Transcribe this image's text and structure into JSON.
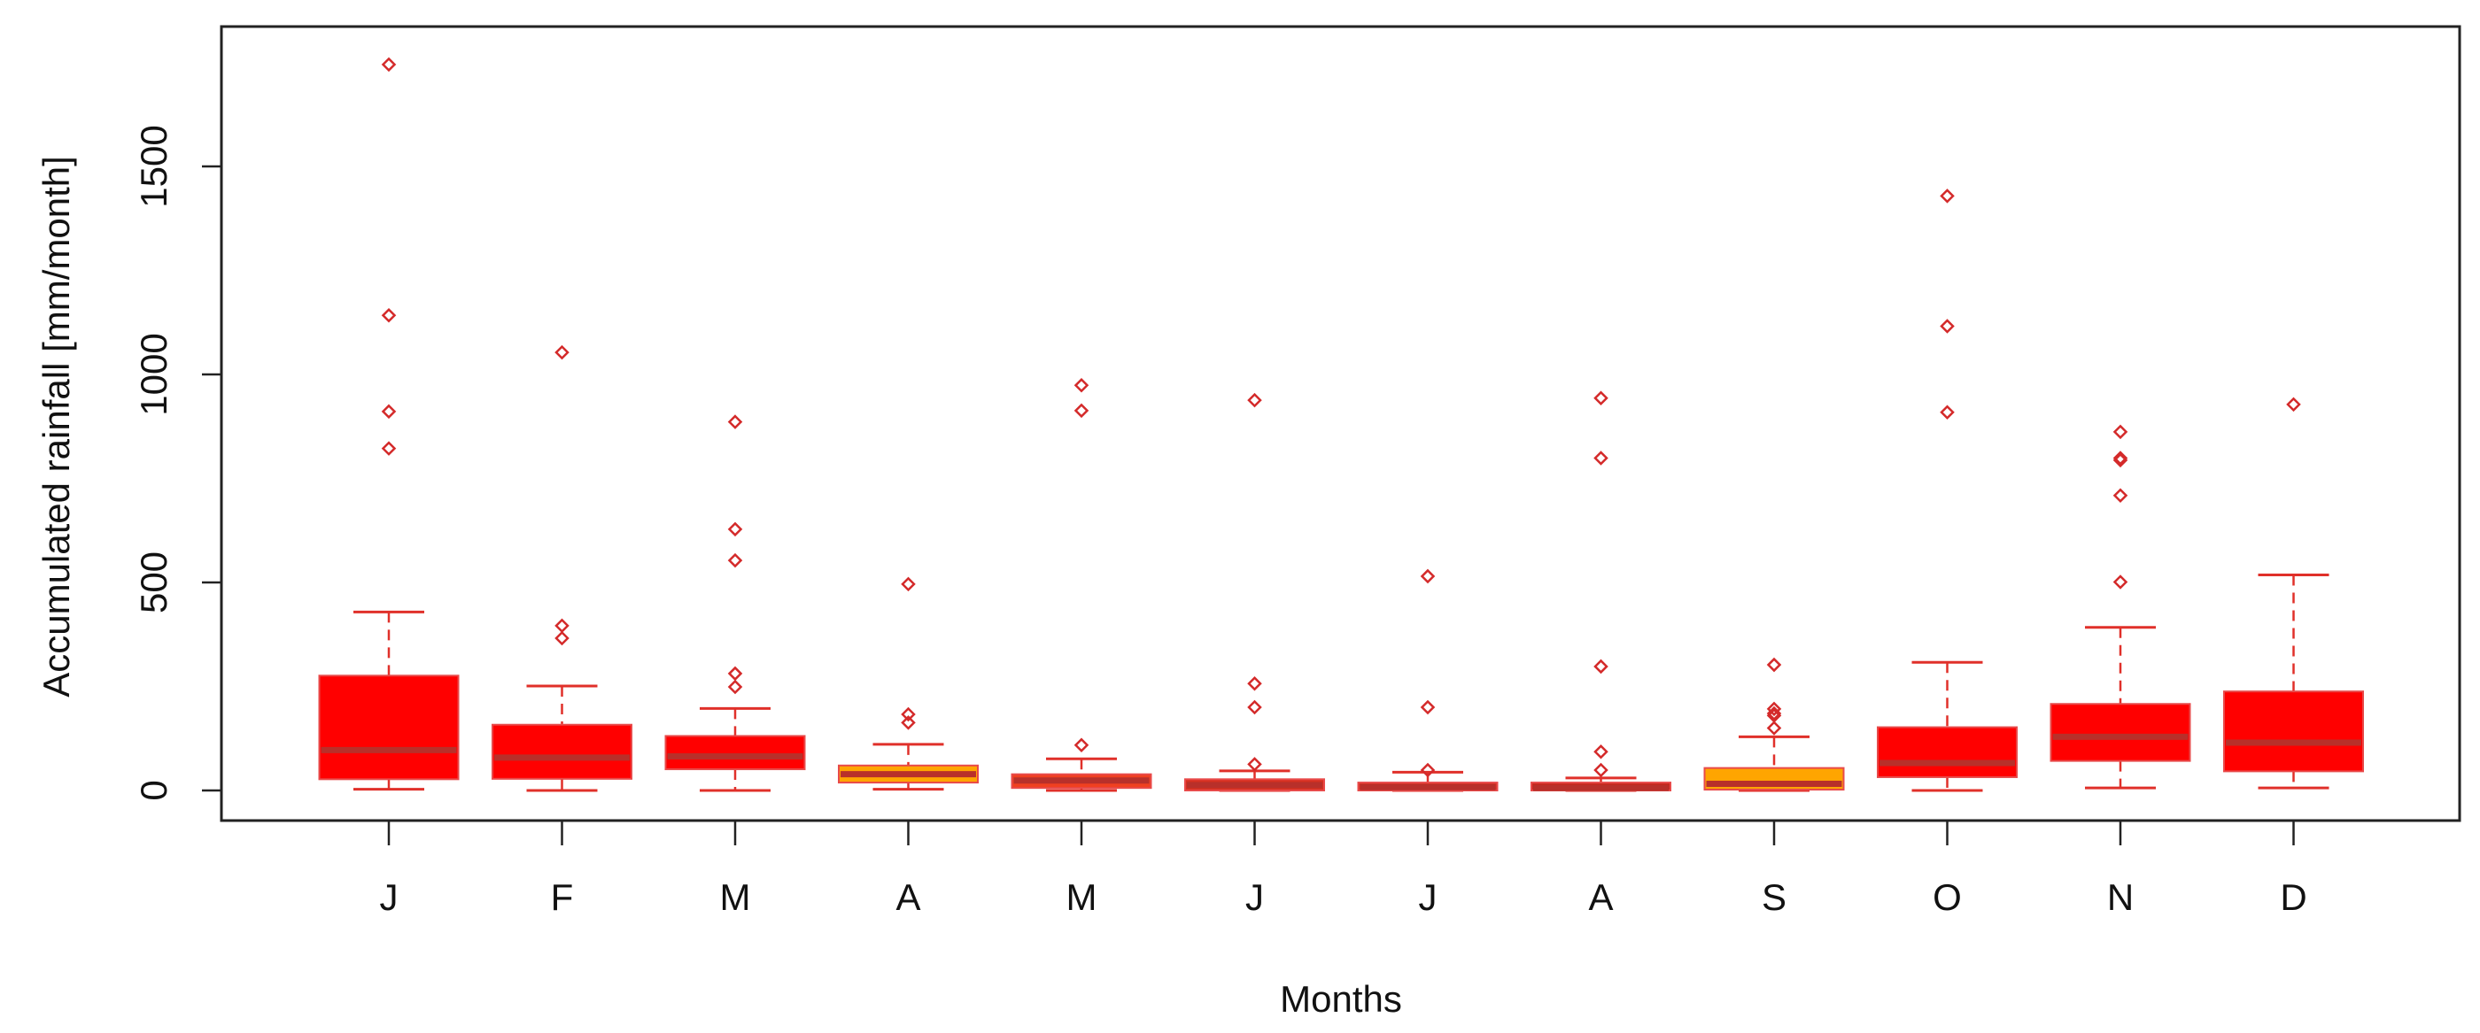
{
  "chart_data": {
    "type": "boxplot",
    "xlabel": "Months",
    "ylabel": "Accumulated rainfall [mm/month]",
    "ylim": [
      -70,
      1820
    ],
    "yticks": [
      0,
      500,
      1000,
      1500
    ],
    "grid": false,
    "categories": [
      "J",
      "F",
      "M",
      "A",
      "M",
      "J",
      "J",
      "A",
      "S",
      "O",
      "N",
      "D"
    ],
    "colors": {
      "box_default": "#FF0000",
      "box_orange": "#FFA500",
      "box_dark": "#C8281E",
      "median": "#B8302A",
      "whisker": "#E0302A",
      "outlier": "#D42A2A",
      "frame": "#222222"
    },
    "boxes": [
      {
        "min": 3,
        "q1": 27,
        "median": 97,
        "q3": 276,
        "max": 429,
        "outliers": [
          1745,
          1142,
          911,
          822
        ],
        "fill": "#FF0000"
      },
      {
        "min": 0,
        "q1": 28,
        "median": 79,
        "q3": 158,
        "max": 251,
        "outliers": [
          1053,
          396,
          366
        ],
        "fill": "#FF0000"
      },
      {
        "min": 0,
        "q1": 51,
        "median": 82,
        "q3": 131,
        "max": 197,
        "outliers": [
          886,
          628,
          553,
          281,
          249
        ],
        "fill": "#FF0000"
      },
      {
        "min": 3,
        "q1": 19,
        "median": 39,
        "q3": 60,
        "max": 111,
        "outliers": [
          496,
          183,
          163
        ],
        "fill": "#FFA500"
      },
      {
        "min": 0,
        "q1": 6,
        "median": 24,
        "q3": 39,
        "max": 76,
        "outliers": [
          974,
          913,
          109
        ],
        "fill": "#F04020"
      },
      {
        "min": 0,
        "q1": 0,
        "median": 13,
        "q3": 27,
        "max": 47,
        "outliers": [
          938,
          257,
          200,
          63
        ],
        "fill": "#D83020"
      },
      {
        "min": 0,
        "q1": 0,
        "median": 8,
        "q3": 19,
        "max": 44,
        "outliers": [
          515,
          200,
          49
        ],
        "fill": "#D83020"
      },
      {
        "min": 0,
        "q1": 0,
        "median": 6,
        "q3": 19,
        "max": 30,
        "outliers": [
          943,
          799,
          298,
          93,
          49
        ],
        "fill": "#C8281E"
      },
      {
        "min": 0,
        "q1": 2,
        "median": 16,
        "q3": 54,
        "max": 129,
        "outliers": [
          302,
          196,
          185,
          180,
          150
        ],
        "fill": "#FFA500"
      },
      {
        "min": 0,
        "q1": 32,
        "median": 66,
        "q3": 152,
        "max": 308,
        "outliers": [
          1429,
          1116,
          909
        ],
        "fill": "#FF0000"
      },
      {
        "min": 6,
        "q1": 71,
        "median": 129,
        "q3": 208,
        "max": 392,
        "outliers": [
          862,
          799,
          794,
          709,
          501
        ],
        "fill": "#FF0000"
      },
      {
        "min": 6,
        "q1": 46,
        "median": 115,
        "q3": 238,
        "max": 518,
        "outliers": [
          928
        ],
        "fill": "#FF0000"
      }
    ]
  }
}
